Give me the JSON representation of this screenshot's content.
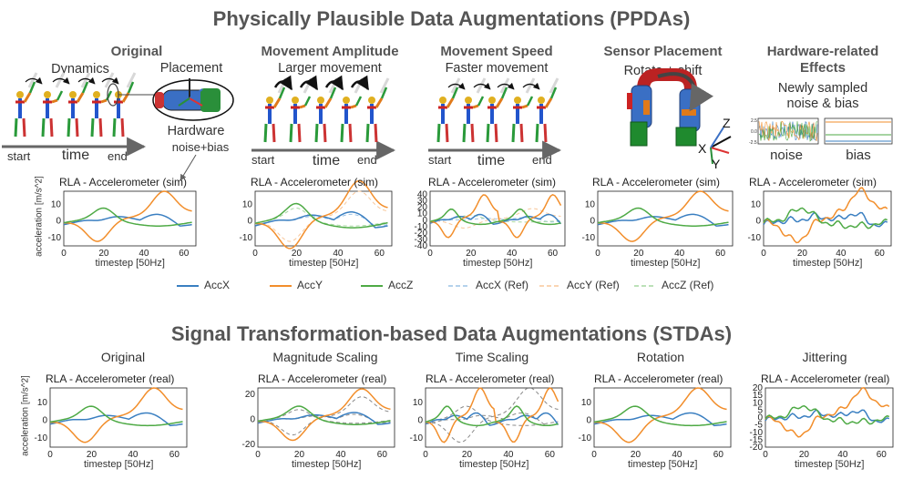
{
  "ppda": {
    "title": "Physically Plausible Data Augmentations (PPDAs)",
    "original": {
      "title": "Original",
      "dynamics": "Dynamics",
      "placement": "Placement",
      "time": "time",
      "start": "start",
      "end": "end",
      "hardware": "Hardware",
      "noise_bias": "noise+bias"
    },
    "amplitude": {
      "title": "Movement Amplitude",
      "subtitle": "Larger movement",
      "time": "time",
      "start": "start",
      "end": "end"
    },
    "speed": {
      "title": "Movement Speed",
      "subtitle": "Faster movement",
      "time": "time",
      "start": "start",
      "end": "end"
    },
    "placement": {
      "title": "Sensor Placement",
      "subtitle": "Rotate + shift",
      "axis_z": "Z",
      "axis_x": "X",
      "axis_y": "Y"
    },
    "hardware": {
      "title1": "Hardware-related",
      "title2": "Effects",
      "subtitle1": "Newly sampled",
      "subtitle2": "noise & bias",
      "noise": "noise",
      "bias": "bias"
    }
  },
  "stda": {
    "title": "Signal Transformation-based Data Augmentations (STDAs)",
    "columns": [
      "Original",
      "Magnitude Scaling",
      "Time Scaling",
      "Rotation",
      "Jittering"
    ]
  },
  "legend": [
    "AccX",
    "AccY",
    "AccZ",
    "AccX (Ref)",
    "AccY (Ref)",
    "AccZ (Ref)"
  ],
  "colors": {
    "accx": "#3a7fc1",
    "accy": "#f28e2b",
    "accz": "#4eaa45",
    "ref_grey": "#888888"
  },
  "chart_data": [
    {
      "type": "line",
      "title": "RLA - Accelerometer (sim)",
      "xlabel": "timestep [50Hz]",
      "ylabel": "acceleration [m/s^2]",
      "xticks": [
        "0",
        "20",
        "40",
        "60"
      ],
      "yticks": [
        "10",
        "0",
        "-10"
      ]
    },
    {
      "type": "line",
      "title": "RLA - Accelerometer (sim)",
      "xlabel": "timestep [50Hz]",
      "xticks": [
        "0",
        "20",
        "40",
        "60"
      ],
      "yticks": [
        "10",
        "0",
        "-10"
      ]
    },
    {
      "type": "line",
      "title": "RLA - Accelerometer (sim)",
      "xlabel": "timestep [50Hz]",
      "xticks": [
        "0",
        "20",
        "40",
        "60"
      ],
      "yticks": [
        "40",
        "30",
        "20",
        "10",
        "0",
        "-10",
        "-20",
        "-30",
        "-40"
      ]
    },
    {
      "type": "line",
      "title": "RLA - Accelerometer (sim)",
      "xlabel": "timestep [50Hz]",
      "xticks": [
        "0",
        "20",
        "40",
        "60"
      ],
      "yticks": [
        "10",
        "0",
        "-10"
      ]
    },
    {
      "type": "line",
      "title": "RLA - Accelerometer (sim)",
      "xlabel": "timestep [50Hz]",
      "xticks": [
        "0",
        "20",
        "40",
        "60"
      ],
      "yticks": [
        "10",
        "0",
        "-10"
      ]
    },
    {
      "type": "line",
      "title": "RLA - Accelerometer (real)",
      "xlabel": "timestep [50Hz]",
      "ylabel": "acceleration [m/s^2]",
      "xticks": [
        "0",
        "20",
        "40",
        "60"
      ],
      "yticks": [
        "10",
        "0",
        "-10"
      ]
    },
    {
      "type": "line",
      "title": "RLA - Accelerometer (real)",
      "xlabel": "timestep [50Hz]",
      "xticks": [
        "0",
        "20",
        "40",
        "60"
      ],
      "yticks": [
        "20",
        "0",
        "-20"
      ]
    },
    {
      "type": "line",
      "title": "RLA - Accelerometer (real)",
      "xlabel": "timestep [50Hz]",
      "xticks": [
        "0",
        "20",
        "40",
        "60"
      ],
      "yticks": [
        "10",
        "0",
        "-10"
      ]
    },
    {
      "type": "line",
      "title": "RLA - Accelerometer (real)",
      "xlabel": "timestep [50Hz]",
      "xticks": [
        "0",
        "20",
        "40",
        "60"
      ],
      "yticks": [
        "10",
        "0",
        "-10"
      ]
    },
    {
      "type": "line",
      "title": "RLA - Accelerometer (real)",
      "xlabel": "timestep [50Hz]",
      "xticks": [
        "0",
        "20",
        "40",
        "60"
      ],
      "yticks": [
        "20",
        "15",
        "10",
        "5",
        "0",
        "-5",
        "-10",
        "-15",
        "-20"
      ]
    }
  ]
}
